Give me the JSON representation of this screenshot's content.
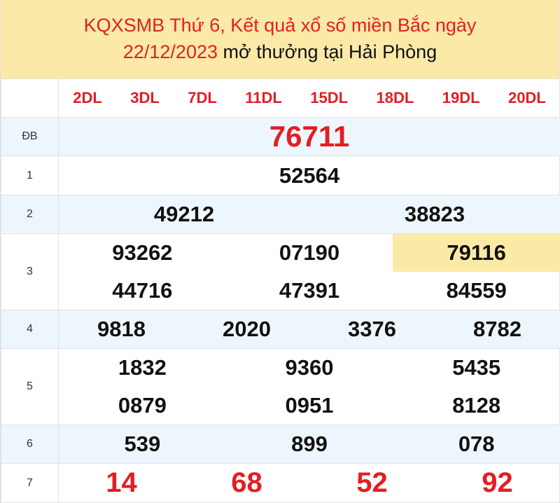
{
  "title": {
    "part1": "KQXSMB Thứ 6, Kết quả xổ số miền Bắc ngày",
    "date": "22/12/2023",
    "part2": " mở thưởng tại Hải Phòng"
  },
  "codes": [
    "2DL",
    "3DL",
    "7DL",
    "11DL",
    "15DL",
    "18DL",
    "19DL",
    "20DL"
  ],
  "labels": [
    "ĐB",
    "1",
    "2",
    "3",
    "4",
    "5",
    "6",
    "7"
  ],
  "prizes": {
    "db": "76711",
    "p1": "52564",
    "p2": [
      "49212",
      "38823"
    ],
    "p3": [
      "93262",
      "07190",
      "79116",
      "44716",
      "47391",
      "84559"
    ],
    "p4": [
      "9818",
      "2020",
      "3376",
      "8782"
    ],
    "p5": [
      "1832",
      "9360",
      "5435",
      "0879",
      "0951",
      "8128"
    ],
    "p6": [
      "539",
      "899",
      "078"
    ],
    "p7": [
      "14",
      "68",
      "52",
      "92"
    ]
  },
  "colors": {
    "red": "#e31e24",
    "header_bg": "#fbe9a8",
    "stripe": "#eef6fd"
  }
}
